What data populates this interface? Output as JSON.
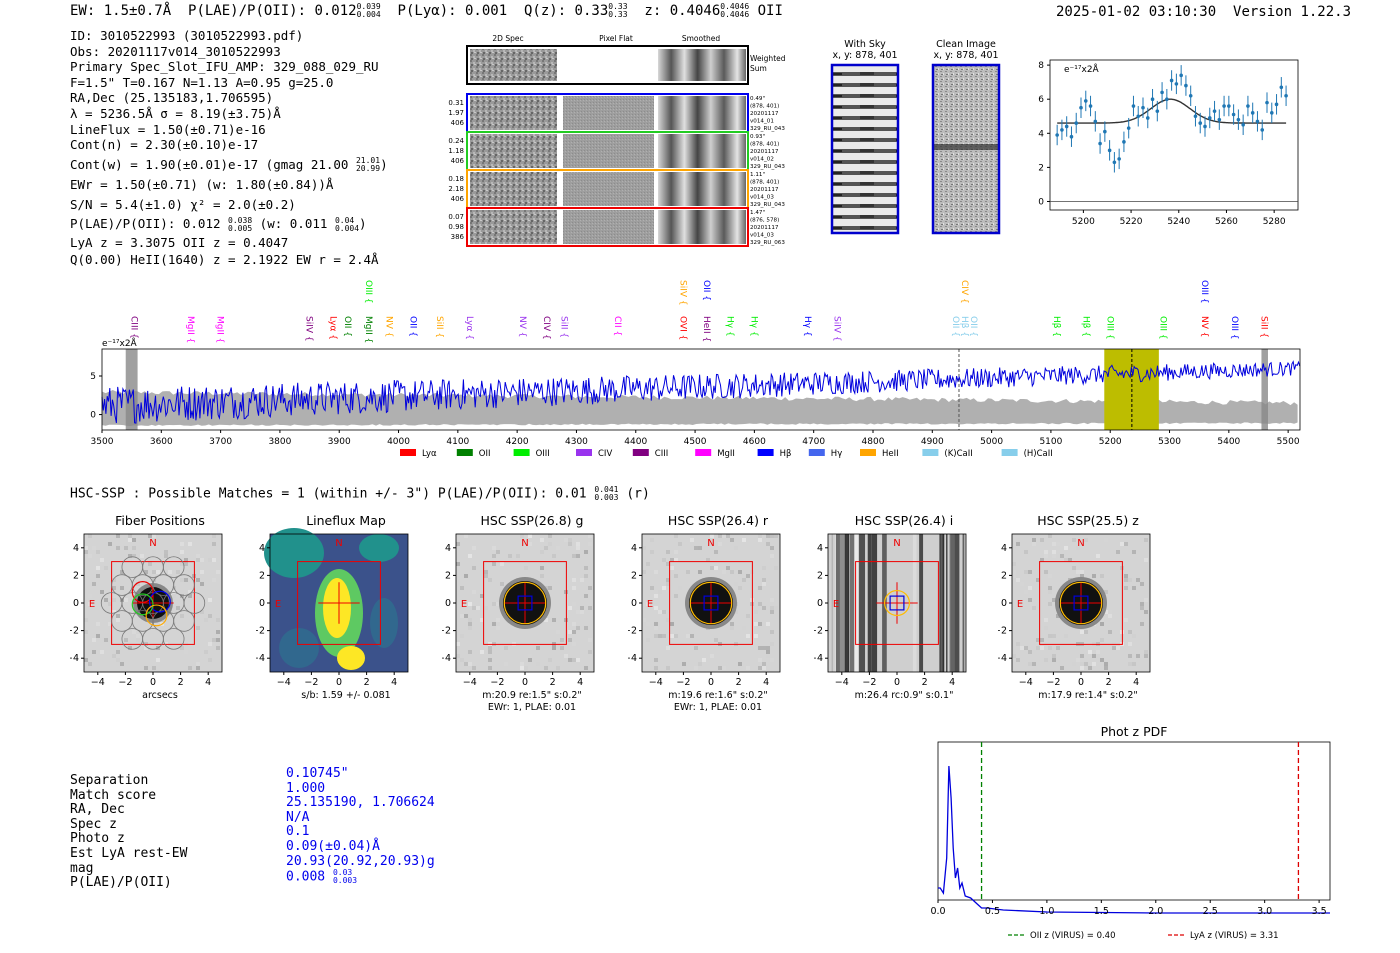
{
  "header": {
    "ew": "EW: 1.5±0.7Å",
    "plae_label": "P(LAE)/P(OII): 0.012",
    "plae_sup": "0.039",
    "plae_sub": "0.004",
    "plya": "P(Lyα): 0.001",
    "qz_label": "Q(z): 0.33",
    "qz_sup": "0.33",
    "qz_sub": "0.33",
    "z_label": "z: 0.4046",
    "z_sup": "0.4046",
    "z_sub": "0.4046",
    "z_line": "OII",
    "datetime": "2025-01-02 03:10:30",
    "version": "Version 1.22.3"
  },
  "info": {
    "lines": [
      "ID: 3010522993 (3010522993.pdf)",
      "Obs: 20201117v014_3010522993",
      "Primary Spec_Slot_IFU_AMP: 329_088_029_RU",
      "F=1.5\"  T=0.167  N=1.13  A=0.95  g=25.0",
      "RA,Dec (25.135183,1.706595)",
      "λ = 5236.5Å  σ = 8.19(±3.75)Å",
      "LineFlux = 1.50(±0.71)e-16",
      "Cont(n) = 2.30(±0.10)e-17"
    ],
    "contw": "Cont(w) = 1.90(±0.01)e-17 (gmag 21.00",
    "contw_sup": "21.01",
    "contw_sub": "20.99",
    "contw_end": ")",
    "ewr": "EWr = 1.50(±0.71) (w: 1.80(±0.84))Å",
    "sn": "S/N = 5.4(±1.0)  χ² = 2.0(±0.2)",
    "plae2": "P(LAE)/P(OII): 0.012",
    "plae2_sup": "0.038",
    "plae2_sub": "0.005",
    "plae2_mid": "(w: 0.011",
    "plae2_sup2": "0.04",
    "plae2_sub2": "0.004",
    "plae2_end": ")",
    "lya": "LyA z = 3.3075  OII z = 0.4047",
    "heii": "Q(0.00) HeII(1640) z = 2.1922  EW r = 2.4Å"
  },
  "spec2d": {
    "col_2d": "2D Spec",
    "col_flat": "Pixel Flat",
    "col_smooth": "Smoothed",
    "weighted": "Weighted",
    "sum": "Sum",
    "rows": [
      {
        "nums": [
          "0.31",
          "1.97",
          "406"
        ],
        "meta": [
          "0.49\"",
          "(878, 401)",
          "20201117",
          "v014_01",
          "329_RU_043"
        ],
        "color": "#0000ee"
      },
      {
        "nums": [
          "0.24",
          "1.18",
          "406"
        ],
        "meta": [
          "0.93\"",
          "(878, 401)",
          "20201117",
          "v014_02",
          "329_RU_043"
        ],
        "color": "#22cc22"
      },
      {
        "nums": [
          "0.18",
          "2.18",
          "406"
        ],
        "meta": [
          "1.11\"",
          "(878, 401)",
          "20201117",
          "v014_03",
          "329_RU_043"
        ],
        "color": "#ffa500"
      },
      {
        "nums": [
          "0.07",
          "0.98",
          "386"
        ],
        "meta": [
          "1.47\"",
          "(876, 578)",
          "20201117",
          "v014_03",
          "329_RU_063"
        ],
        "color": "#ee0000"
      }
    ]
  },
  "cutouts": {
    "with_sky": "With Sky",
    "clean": "Clean Image",
    "xy1": "x, y: 878, 401",
    "xy2": "x, y: 878, 401"
  },
  "zoom_chart": {
    "ylabel": "e⁻¹⁷x2Å"
  },
  "full_spectrum": {
    "ylabel": "e⁻¹⁷x2Å"
  },
  "hsc": {
    "title": "HSC-SSP : Possible Matches = 1 (within +/- 3\")  P(LAE)/P(OII): 0.01",
    "sup": "0.041",
    "sub": "0.003",
    "end": "(r)"
  },
  "panels": [
    {
      "title": "Fiber Positions",
      "cap1": "arcsecs",
      "cap2": ""
    },
    {
      "title": "Lineflux Map",
      "cap1": "s/b: 1.59 +/- 0.081",
      "cap2": ""
    },
    {
      "title": "HSC SSP(26.8) g",
      "cap1": "m:20.9  re:1.5\"  s:0.2\"",
      "cap2": "EWr: 1, PLAE: 0.01"
    },
    {
      "title": "HSC SSP(26.4) r",
      "cap1": "m:19.6  re:1.6\"  s:0.2\"",
      "cap2": "EWr: 1, PLAE: 0.01"
    },
    {
      "title": "HSC SSP(26.4) i",
      "cap1": "m:26.4 rc:0.9\"  s:0.1\"",
      "cap2": ""
    },
    {
      "title": "HSC SSP(25.5) z",
      "cap1": "m:17.9  re:1.4\"  s:0.2\"",
      "cap2": ""
    }
  ],
  "match": {
    "labels": [
      "Separation",
      "Match score",
      "RA, Dec",
      "Spec z",
      "Photo z",
      "Est LyA rest-EW",
      "mag",
      "P(LAE)/P(OII)"
    ],
    "values": [
      "0.10745\"",
      "1.000",
      "25.135190, 1.706624",
      "N/A",
      "0.1",
      "0.09(±0.04)Å",
      "20.93(20.92,20.93)g",
      "0.008"
    ],
    "plae_sup": "0.03",
    "plae_sub": "0.003"
  },
  "chart_data": [
    {
      "type": "line",
      "name": "zoom-spectrum",
      "xlim": [
        5186,
        5290
      ],
      "ylim": [
        -0.5,
        8.3
      ],
      "xticks": [
        5200,
        5220,
        5240,
        5260,
        5280
      ],
      "yticks": [
        0,
        2,
        4,
        6,
        8
      ],
      "points_x": [
        5189,
        5191,
        5193,
        5195,
        5197,
        5199,
        5201,
        5203,
        5205,
        5207,
        5209,
        5211,
        5213,
        5215,
        5217,
        5219,
        5221,
        5223,
        5225,
        5227,
        5229,
        5231,
        5233,
        5235,
        5237,
        5239,
        5241,
        5243,
        5245,
        5247,
        5249,
        5251,
        5253,
        5255,
        5257,
        5259,
        5261,
        5263,
        5265,
        5267,
        5269,
        5271,
        5273,
        5275,
        5277,
        5279,
        5281,
        5283,
        5285
      ],
      "points_y": [
        3.9,
        4.2,
        4.4,
        3.8,
        4.6,
        5.5,
        5.9,
        5.6,
        4.7,
        3.4,
        4.1,
        3.0,
        2.3,
        2.5,
        3.5,
        4.3,
        5.6,
        5.0,
        5.5,
        4.9,
        6.0,
        5.3,
        6.4,
        6.0,
        7.1,
        6.9,
        7.4,
        6.8,
        6.2,
        5.0,
        4.6,
        4.4,
        4.9,
        5.3,
        4.8,
        5.6,
        5.6,
        5.1,
        4.8,
        4.5,
        5.6,
        5.2,
        4.7,
        4.2,
        5.8,
        5.2,
        5.7,
        6.7,
        6.2
      ],
      "errors": [
        0.6,
        0.6,
        0.6,
        0.6,
        0.6,
        0.6,
        0.6,
        0.6,
        0.6,
        0.6,
        0.6,
        0.6,
        0.6,
        0.6,
        0.6,
        0.6,
        0.6,
        0.6,
        0.6,
        0.6,
        0.6,
        0.6,
        0.6,
        0.6,
        0.6,
        0.6,
        0.6,
        0.6,
        0.6,
        0.6,
        0.6,
        0.6,
        0.6,
        0.6,
        0.6,
        0.6,
        0.6,
        0.6,
        0.6,
        0.6,
        0.6,
        0.6,
        0.6,
        0.6,
        0.6,
        0.6,
        0.6,
        0.6,
        0.6
      ],
      "fit": {
        "continuum": 4.6,
        "amplitude": 1.4,
        "center": 5236.5,
        "sigma": 8.19
      }
    },
    {
      "type": "line",
      "name": "full-spectrum",
      "xlim": [
        3500,
        5520
      ],
      "ylim": [
        -2.0,
        8.5
      ],
      "xticks": [
        3500,
        3600,
        3700,
        3800,
        3900,
        4000,
        4100,
        4200,
        4300,
        4400,
        4500,
        4600,
        4700,
        4800,
        4900,
        5000,
        5100,
        5200,
        5300,
        5400,
        5500
      ],
      "yticks": [
        0,
        5
      ],
      "continuum_start": 1.2,
      "continuum_end": 6.0,
      "highlight": [
        5190,
        5282
      ],
      "line_marker": 5236.5,
      "dashed_marker": 4945,
      "legend": [
        {
          "label": "Lyα",
          "color": "#ff0000"
        },
        {
          "label": "OII",
          "color": "#008000"
        },
        {
          "label": "OIII",
          "color": "#00ee00"
        },
        {
          "label": "CIV",
          "color": "#9933ee"
        },
        {
          "label": "CIII",
          "color": "#800080"
        },
        {
          "label": "MgII",
          "color": "#ff00ff"
        },
        {
          "label": "Hβ",
          "color": "#0000ff"
        },
        {
          "label": "Hγ",
          "color": "#4466ee"
        },
        {
          "label": "HeII",
          "color": "#ffa500"
        },
        {
          "label": "(K)CaII",
          "color": "#87ceeb"
        },
        {
          "label": "(H)CaII",
          "color": "#87ceeb"
        }
      ],
      "line_labels": [
        {
          "x": 3545,
          "label": "CIII",
          "color": "#800080",
          "row": 1
        },
        {
          "x": 3640,
          "label": "MgII",
          "color": "#ff00ff",
          "row": 1
        },
        {
          "x": 3690,
          "label": "MgII",
          "color": "#ff00ff",
          "row": 1
        },
        {
          "x": 3840,
          "label": "SiIV",
          "color": "#800080",
          "row": 1
        },
        {
          "x": 3880,
          "label": "Lyα",
          "color": "#ff0000",
          "row": 1
        },
        {
          "x": 3905,
          "label": "OII",
          "color": "#008000",
          "row": 1
        },
        {
          "x": 3940,
          "label": "MgII",
          "color": "#008000",
          "row": 1
        },
        {
          "x": 3940,
          "label": "OIII",
          "color": "#00ee00",
          "row": 0
        },
        {
          "x": 3975,
          "label": "NV",
          "color": "#ffa500",
          "row": 1
        },
        {
          "x": 4015,
          "label": "OII",
          "color": "#0000ff",
          "row": 1
        },
        {
          "x": 4060,
          "label": "SiII",
          "color": "#ffa500",
          "row": 1
        },
        {
          "x": 4110,
          "label": "Lyα",
          "color": "#9933ee",
          "row": 1
        },
        {
          "x": 4200,
          "label": "NV",
          "color": "#9933ee",
          "row": 1
        },
        {
          "x": 4240,
          "label": "CIV",
          "color": "#800080",
          "row": 1
        },
        {
          "x": 4270,
          "label": "SiII",
          "color": "#9933ee",
          "row": 1
        },
        {
          "x": 4360,
          "label": "CII",
          "color": "#ff00ff",
          "row": 1
        },
        {
          "x": 4470,
          "label": "OVI",
          "color": "#ff0000",
          "row": 1
        },
        {
          "x": 4470,
          "label": "SiIV",
          "color": "#ffa500",
          "row": 0
        },
        {
          "x": 4510,
          "label": "HeII",
          "color": "#800080",
          "row": 1
        },
        {
          "x": 4510,
          "label": "OII",
          "color": "#0000ff",
          "row": 0
        },
        {
          "x": 4550,
          "label": "Hγ",
          "color": "#00ee00",
          "row": 1
        },
        {
          "x": 4590,
          "label": "Hγ",
          "color": "#00ee00",
          "row": 1
        },
        {
          "x": 4680,
          "label": "Hγ",
          "color": "#0000ff",
          "row": 1
        },
        {
          "x": 4730,
          "label": "SiIV",
          "color": "#9933ee",
          "row": 1
        },
        {
          "x": 4930,
          "label": "OII",
          "color": "#87ceeb",
          "row": 1
        },
        {
          "x": 4945,
          "label": "Hβ",
          "color": "#87ceeb",
          "row": 1
        },
        {
          "x": 4960,
          "label": "OII",
          "color": "#87ceeb",
          "row": 1
        },
        {
          "x": 4945,
          "label": "CIV",
          "color": "#ffa500",
          "row": 0
        },
        {
          "x": 5100,
          "label": "Hβ",
          "color": "#00ee00",
          "row": 1
        },
        {
          "x": 5150,
          "label": "Hβ",
          "color": "#00ee00",
          "row": 1
        },
        {
          "x": 5190,
          "label": "OIII",
          "color": "#00ee00",
          "row": 1
        },
        {
          "x": 5280,
          "label": "OIII",
          "color": "#00ee00",
          "row": 1
        },
        {
          "x": 5350,
          "label": "NV",
          "color": "#ff0000",
          "row": 1
        },
        {
          "x": 5350,
          "label": "OIII",
          "color": "#0000ff",
          "row": 0
        },
        {
          "x": 5400,
          "label": "OIII",
          "color": "#0000ff",
          "row": 1
        },
        {
          "x": 5450,
          "label": "SiII",
          "color": "#ff0000",
          "row": 1
        }
      ]
    },
    {
      "type": "line",
      "name": "photz-pdf",
      "title": "Phot z PDF",
      "xlim": [
        0.0,
        3.6
      ],
      "xticks": [
        0.0,
        0.5,
        1.0,
        1.5,
        2.0,
        2.5,
        3.0,
        3.5
      ],
      "peak_z": 0.1,
      "oii_z": 0.4,
      "lya_z": 3.31,
      "legend": [
        {
          "label": "OII z (VIRUS) = 0.40",
          "color": "#008000"
        },
        {
          "label": "LyA z (VIRUS) = 3.31",
          "color": "#dd0000"
        }
      ]
    }
  ]
}
